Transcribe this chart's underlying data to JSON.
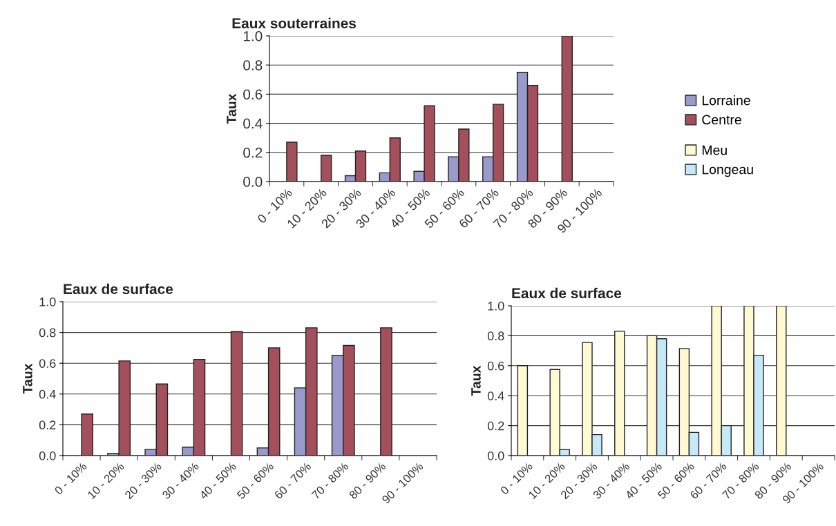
{
  "chart_data": [
    {
      "type": "bar",
      "title": "Eaux souterraines",
      "ylabel": "Taux",
      "categories": [
        "0 - 10%",
        "10 - 20%",
        "20 - 30%",
        "30 - 40%",
        "40 - 50%",
        "50 - 60%",
        "60 - 70%",
        "70 - 80%",
        "80 - 90%",
        "90 - 100%"
      ],
      "ylim": [
        0,
        1
      ],
      "yticks": [
        {
          "value": 0,
          "label": "0.0"
        },
        {
          "value": 0.2,
          "label": "0.2"
        },
        {
          "value": 0.4,
          "label": "0.4"
        },
        {
          "value": 0.6,
          "label": "0.6"
        },
        {
          "value": 0.8,
          "label": "0.8"
        },
        {
          "value": 1,
          "label": "1.0"
        }
      ],
      "grid": "y",
      "legend": "right",
      "series": [
        {
          "name": "Lorraine",
          "color": "#9999cc",
          "values": [
            null,
            null,
            0.04,
            0.06,
            0.07,
            0.17,
            0.17,
            0.75,
            null,
            null
          ]
        },
        {
          "name": "Centre",
          "color": "#a44f5c",
          "values": [
            0.27,
            0.18,
            0.21,
            0.3,
            0.52,
            0.36,
            0.53,
            0.66,
            1.0,
            null
          ]
        }
      ]
    },
    {
      "type": "bar",
      "title": "Eaux de surface",
      "ylabel": "Taux",
      "categories": [
        "0 - 10%",
        "10 - 20%",
        "20 - 30%",
        "30 - 40%",
        "40 - 50%",
        "50 - 60%",
        "60 - 70%",
        "70 - 80%",
        "80 - 90%",
        "90 - 100%"
      ],
      "ylim": [
        0,
        1
      ],
      "yticks": [
        {
          "value": 0,
          "label": "0.0"
        },
        {
          "value": 0.2,
          "label": "0.2"
        },
        {
          "value": 0.4,
          "label": "0.4"
        },
        {
          "value": 0.6,
          "label": "0.6"
        },
        {
          "value": 0.8,
          "label": "0.8"
        },
        {
          "value": 1,
          "label": "1.0"
        }
      ],
      "grid": "y",
      "series": [
        {
          "color": "#9999cc",
          "values": [
            null,
            0.015,
            0.04,
            0.055,
            null,
            0.05,
            0.44,
            0.65,
            null,
            null
          ]
        },
        {
          "color": "#a44f5c",
          "values": [
            0.27,
            0.615,
            0.465,
            0.625,
            0.805,
            0.7,
            0.83,
            0.715,
            0.83,
            null
          ]
        }
      ]
    },
    {
      "type": "bar",
      "title": "Eaux de surface",
      "ylabel": "Taux",
      "categories": [
        "0 - 10%",
        "10 - 20%",
        "20 - 30%",
        "30 - 40%",
        "40 - 50%",
        "50 - 60%",
        "60 - 70%",
        "70 - 80%",
        "80 - 90%",
        "90 - 100%"
      ],
      "ylim": [
        0,
        1
      ],
      "yticks": [
        {
          "value": 0,
          "label": "0.0"
        },
        {
          "value": 0.2,
          "label": "0.2"
        },
        {
          "value": 0.4,
          "label": "0.4"
        },
        {
          "value": 0.6,
          "label": "0.6"
        },
        {
          "value": 0.8,
          "label": "0.8"
        },
        {
          "value": 1,
          "label": "1.0"
        }
      ],
      "grid": "y",
      "legend": "right",
      "series": [
        {
          "name": "Meu",
          "color": "#fffad2",
          "values": [
            0.6,
            0.575,
            0.755,
            0.83,
            0.8,
            0.715,
            1.0,
            1.0,
            1.0,
            null
          ]
        },
        {
          "name": "Longeau",
          "color": "#c6e9f7",
          "values": [
            null,
            0.04,
            0.14,
            null,
            0.78,
            0.155,
            0.2,
            0.67,
            null,
            null
          ]
        }
      ]
    }
  ]
}
